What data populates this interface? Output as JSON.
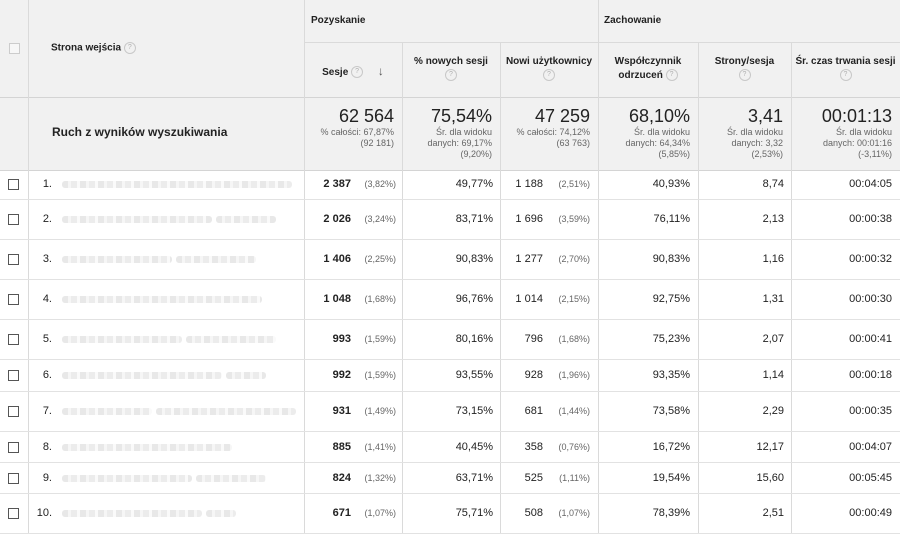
{
  "header": {
    "entry_page_label": "Strona wejścia",
    "group_acquisition": "Pozyskanie",
    "group_behavior": "Zachowanie",
    "help_glyph": "?",
    "sort_glyph": "↓",
    "columns": [
      {
        "label": "Sesje"
      },
      {
        "label": "% nowych sesji"
      },
      {
        "label": "Nowi użytkownicy"
      },
      {
        "label": "Współczynnik odrzuceń"
      },
      {
        "label": "Strony/sesja"
      },
      {
        "label": "Śr. czas trwania sesji"
      }
    ]
  },
  "totals": {
    "label": "Ruch z wyników wyszukiwania",
    "values": [
      {
        "big": "62 564",
        "sub1": "% całości: 67,87%",
        "sub2": "(92 181)"
      },
      {
        "big": "75,54%",
        "sub1": "Śr. dla widoku",
        "sub2": "danych: 69,17%",
        "sub3": "(9,20%)"
      },
      {
        "big": "47 259",
        "sub1": "% całości: 74,12%",
        "sub2": "(63 763)"
      },
      {
        "big": "68,10%",
        "sub1": "Śr. dla widoku",
        "sub2": "danych: 64,34%",
        "sub3": "(5,85%)"
      },
      {
        "big": "3,41",
        "sub1": "Śr. dla widoku",
        "sub2": "danych: 3,32",
        "sub3": "(2,53%)"
      },
      {
        "big": "00:01:13",
        "sub1": "Śr. dla widoku",
        "sub2": "danych: 00:01:16",
        "sub3": "(-3,11%)"
      }
    ]
  },
  "rows": [
    {
      "index": "1.",
      "sessions": "2 387",
      "sessions_pct": "(3,82%)",
      "new_sessions": "49,77%",
      "new_users": "1 188",
      "new_users_pct": "(2,51%)",
      "bounce": "40,93%",
      "pages": "8,74",
      "duration": "00:04:05"
    },
    {
      "index": "2.",
      "sessions": "2 026",
      "sessions_pct": "(3,24%)",
      "new_sessions": "83,71%",
      "new_users": "1 696",
      "new_users_pct": "(3,59%)",
      "bounce": "76,11%",
      "pages": "2,13",
      "duration": "00:00:38"
    },
    {
      "index": "3.",
      "sessions": "1 406",
      "sessions_pct": "(2,25%)",
      "new_sessions": "90,83%",
      "new_users": "1 277",
      "new_users_pct": "(2,70%)",
      "bounce": "90,83%",
      "pages": "1,16",
      "duration": "00:00:32"
    },
    {
      "index": "4.",
      "sessions": "1 048",
      "sessions_pct": "(1,68%)",
      "new_sessions": "96,76%",
      "new_users": "1 014",
      "new_users_pct": "(2,15%)",
      "bounce": "92,75%",
      "pages": "1,31",
      "duration": "00:00:30"
    },
    {
      "index": "5.",
      "sessions": "993",
      "sessions_pct": "(1,59%)",
      "new_sessions": "80,16%",
      "new_users": "796",
      "new_users_pct": "(1,68%)",
      "bounce": "75,23%",
      "pages": "2,07",
      "duration": "00:00:41"
    },
    {
      "index": "6.",
      "sessions": "992",
      "sessions_pct": "(1,59%)",
      "new_sessions": "93,55%",
      "new_users": "928",
      "new_users_pct": "(1,96%)",
      "bounce": "93,35%",
      "pages": "1,14",
      "duration": "00:00:18"
    },
    {
      "index": "7.",
      "sessions": "931",
      "sessions_pct": "(1,49%)",
      "new_sessions": "73,15%",
      "new_users": "681",
      "new_users_pct": "(1,44%)",
      "bounce": "73,58%",
      "pages": "2,29",
      "duration": "00:00:35"
    },
    {
      "index": "8.",
      "sessions": "885",
      "sessions_pct": "(1,41%)",
      "new_sessions": "40,45%",
      "new_users": "358",
      "new_users_pct": "(0,76%)",
      "bounce": "16,72%",
      "pages": "12,17",
      "duration": "00:04:07"
    },
    {
      "index": "9.",
      "sessions": "824",
      "sessions_pct": "(1,32%)",
      "new_sessions": "63,71%",
      "new_users": "525",
      "new_users_pct": "(1,11%)",
      "bounce": "19,54%",
      "pages": "15,60",
      "duration": "00:05:45"
    },
    {
      "index": "10.",
      "sessions": "671",
      "sessions_pct": "(1,07%)",
      "new_sessions": "75,71%",
      "new_users": "508",
      "new_users_pct": "(1,07%)",
      "bounce": "78,39%",
      "pages": "2,51",
      "duration": "00:00:49"
    }
  ]
}
